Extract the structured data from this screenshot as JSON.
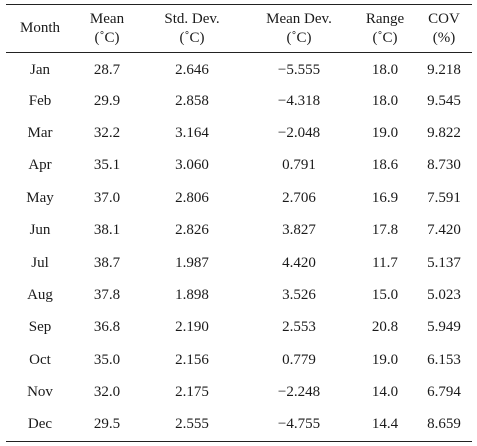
{
  "table": {
    "headers": [
      {
        "line1": "Month",
        "line2": ""
      },
      {
        "line1": "Mean",
        "line2": "(˚C)"
      },
      {
        "line1": "Std. Dev.",
        "line2": "(˚C)"
      },
      {
        "line1": "Mean Dev.",
        "line2": "(˚C)"
      },
      {
        "line1": "Range",
        "line2": "(˚C)"
      },
      {
        "line1": "COV",
        "line2": "(%)"
      }
    ],
    "rows": [
      [
        "Jan",
        "28.7",
        "2.646",
        "−5.555",
        "18.0",
        "9.218"
      ],
      [
        "Feb",
        "29.9",
        "2.858",
        "−4.318",
        "18.0",
        "9.545"
      ],
      [
        "Mar",
        "32.2",
        "3.164",
        "−2.048",
        "19.0",
        "9.822"
      ],
      [
        "Apr",
        "35.1",
        "3.060",
        "0.791",
        "18.6",
        "8.730"
      ],
      [
        "May",
        "37.0",
        "2.806",
        "2.706",
        "16.9",
        "7.591"
      ],
      [
        "Jun",
        "38.1",
        "2.826",
        "3.827",
        "17.8",
        "7.420"
      ],
      [
        "Jul",
        "38.7",
        "1.987",
        "4.420",
        "11.7",
        "5.137"
      ],
      [
        "Aug",
        "37.8",
        "1.898",
        "3.526",
        "15.0",
        "5.023"
      ],
      [
        "Sep",
        "36.8",
        "2.190",
        "2.553",
        "20.8",
        "5.949"
      ],
      [
        "Oct",
        "35.0",
        "2.156",
        "0.779",
        "19.0",
        "6.153"
      ],
      [
        "Nov",
        "32.0",
        "2.175",
        "−2.248",
        "14.0",
        "6.794"
      ],
      [
        "Dec",
        "29.5",
        "2.555",
        "−4.755",
        "14.4",
        "8.659"
      ]
    ]
  }
}
